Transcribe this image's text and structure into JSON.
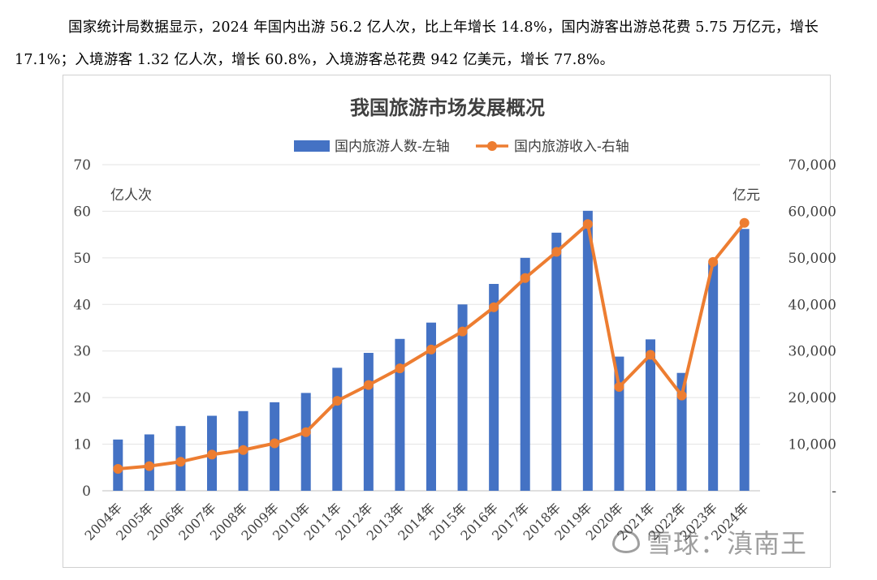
{
  "paragraph": {
    "line1": "国家统计局数据显示，2024 年国内出游 56.2 亿人次，比上年增长 14.8%，国内游客出游总花费 5.75 万亿元，增长",
    "line2": "17.1%；入境游客 1.32 亿人次，增长 60.8%，入境游客总花费 942 亿美元，增长 77.8%。"
  },
  "watermark": "雪球：滇南王",
  "chart_data": {
    "type": "bar+line",
    "title": "我国旅游市场发展概况",
    "left_unit": "亿人次",
    "right_unit": "亿元",
    "left_ylim": [
      0,
      70
    ],
    "right_ylim": [
      0,
      70000
    ],
    "left_ticks": [
      "0",
      "10",
      "20",
      "30",
      "40",
      "50",
      "60",
      "70"
    ],
    "right_ticks": [
      "-",
      "10,000",
      "20,000",
      "30,000",
      "40,000",
      "50,000",
      "60,000",
      "70,000"
    ],
    "categories": [
      "2004年",
      "2005年",
      "2006年",
      "2007年",
      "2008年",
      "2009年",
      "2010年",
      "2011年",
      "2012年",
      "2013年",
      "2014年",
      "2015年",
      "2016年",
      "2017年",
      "2018年",
      "2019年",
      "2020年",
      "2021年",
      "2022年",
      "2023年",
      "2024年"
    ],
    "series": [
      {
        "name": "国内旅游人数-左轴",
        "type": "bar",
        "axis": "left",
        "color": "#4472C4",
        "values": [
          11.0,
          12.1,
          13.9,
          16.1,
          17.1,
          19.0,
          21.0,
          26.4,
          29.6,
          32.6,
          36.1,
          40.0,
          44.4,
          50.0,
          55.4,
          60.1,
          28.8,
          32.5,
          25.3,
          48.9,
          56.2
        ]
      },
      {
        "name": "国内旅游收入-右轴",
        "type": "line",
        "axis": "right",
        "color": "#ED7D31",
        "values": [
          4711,
          5286,
          6230,
          7771,
          8749,
          10184,
          12580,
          19305,
          22706,
          26276,
          30312,
          34195,
          39390,
          45661,
          51278,
          57251,
          22286,
          29191,
          20444,
          49133,
          57500
        ]
      }
    ]
  }
}
